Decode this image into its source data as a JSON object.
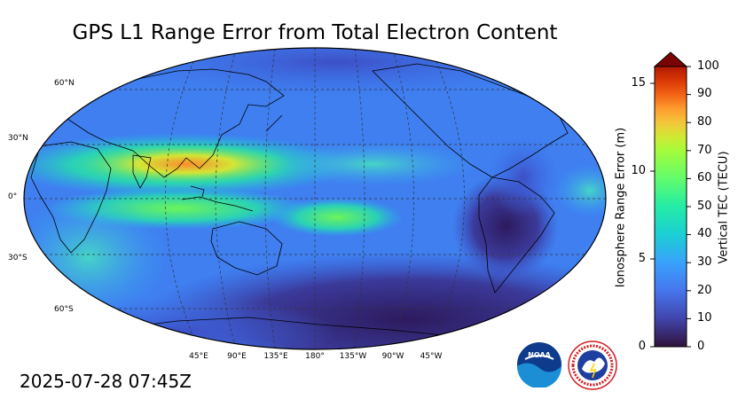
{
  "title": "GPS L1 Range Error from Total Electron Content",
  "timestamp": "2025-07-28 07:45Z",
  "map": {
    "lat_labels": [
      "60°N",
      "30°N",
      "0°",
      "30°S",
      "60°S"
    ],
    "lon_labels": [
      "45°E",
      "90°E",
      "135°E",
      "180°",
      "135°W",
      "90°W",
      "45°W"
    ]
  },
  "colorbar": {
    "left_label": "Ionosphere Range Error (m)",
    "right_label": "Vertical TEC (TECU)",
    "left_ticks": [
      "15",
      "10",
      "5",
      "0"
    ],
    "right_ticks": [
      "100",
      "90",
      "80",
      "70",
      "60",
      "50",
      "40",
      "30",
      "20",
      "10",
      "0"
    ],
    "extend_color": "#7a0403"
  },
  "logos": {
    "noaa_text": "NOAA",
    "nws_text": "NATIONAL WEATHER SERVICE"
  }
}
